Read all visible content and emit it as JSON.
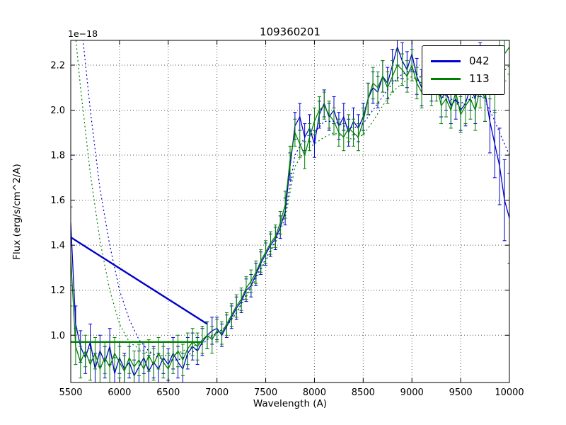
{
  "chart_data": {
    "type": "line",
    "title": "109360201",
    "xlabel": "Wavelength (A)",
    "ylabel": "Flux (erg/s/cm^2/A)",
    "y_offset_label": "1e−18",
    "xlim": [
      5500,
      10000
    ],
    "ylim": [
      0.79,
      2.31
    ],
    "x_ticks": [
      5500,
      6000,
      6500,
      7000,
      7500,
      8000,
      8500,
      9000,
      9500,
      10000
    ],
    "x_tick_labels": [
      "5500",
      "6000",
      "6500",
      "7000",
      "7500",
      "8000",
      "8500",
      "9000",
      "9500",
      "10000"
    ],
    "y_ticks": [
      1.0,
      1.2,
      1.4,
      1.6,
      1.8,
      2.0,
      2.2
    ],
    "y_tick_labels": [
      "1.0",
      "1.2",
      "1.4",
      "1.6",
      "1.8",
      "2.0",
      "2.2"
    ],
    "grid": true,
    "colors": {
      "blue": "#0000cc",
      "green": "#008000"
    },
    "legend": {
      "position": "upper right",
      "entries": [
        {
          "label": "042",
          "color": "#0000cc"
        },
        {
          "label": "113",
          "color": "#008000"
        }
      ]
    },
    "series": [
      {
        "name": "042",
        "type": "errorbar-line",
        "color": "#0000cc",
        "linewidth": 1.3,
        "x": [
          5500,
          5550,
          5600,
          5650,
          5700,
          5750,
          5800,
          5850,
          5900,
          5950,
          6000,
          6050,
          6100,
          6150,
          6200,
          6250,
          6300,
          6350,
          6400,
          6450,
          6500,
          6550,
          6600,
          6650,
          6700,
          6750,
          6800,
          6850,
          6900,
          6950,
          7000,
          7050,
          7100,
          7150,
          7200,
          7250,
          7300,
          7350,
          7400,
          7450,
          7500,
          7550,
          7600,
          7650,
          7700,
          7750,
          7800,
          7850,
          7900,
          7950,
          8000,
          8050,
          8100,
          8150,
          8200,
          8250,
          8300,
          8350,
          8400,
          8450,
          8500,
          8550,
          8600,
          8650,
          8700,
          8750,
          8800,
          8850,
          8900,
          8950,
          9000,
          9050,
          9100,
          9150,
          9200,
          9250,
          9300,
          9350,
          9400,
          9450,
          9500,
          9550,
          9600,
          9650,
          9700,
          9750,
          9800,
          9850,
          9900,
          9950,
          10000
        ],
        "y": [
          1.5,
          1.05,
          0.95,
          0.9,
          0.97,
          0.85,
          0.93,
          0.88,
          0.95,
          0.83,
          0.9,
          0.85,
          0.88,
          0.82,
          0.86,
          0.9,
          0.84,
          0.88,
          0.85,
          0.9,
          0.87,
          0.92,
          0.88,
          0.85,
          0.92,
          0.95,
          0.93,
          0.97,
          1.0,
          1.02,
          1.03,
          1.0,
          1.04,
          1.08,
          1.12,
          1.15,
          1.2,
          1.22,
          1.27,
          1.32,
          1.36,
          1.4,
          1.43,
          1.48,
          1.55,
          1.75,
          1.93,
          1.97,
          1.88,
          1.92,
          1.85,
          1.98,
          2.03,
          1.97,
          2.0,
          1.93,
          1.97,
          1.9,
          1.95,
          1.92,
          1.97,
          2.05,
          2.1,
          2.08,
          2.15,
          2.12,
          2.2,
          2.28,
          2.22,
          2.18,
          2.25,
          2.15,
          2.1,
          2.18,
          2.12,
          2.15,
          2.05,
          2.08,
          2.02,
          2.05,
          2.0,
          2.03,
          2.1,
          2.05,
          2.18,
          2.08,
          1.95,
          1.85,
          1.75,
          1.6,
          1.52
        ],
        "yerr": [
          0.28,
          0.08,
          0.07,
          0.07,
          0.08,
          0.07,
          0.07,
          0.07,
          0.08,
          0.07,
          0.07,
          0.07,
          0.07,
          0.07,
          0.07,
          0.07,
          0.07,
          0.07,
          0.07,
          0.07,
          0.07,
          0.07,
          0.07,
          0.07,
          0.07,
          0.06,
          0.06,
          0.06,
          0.06,
          0.06,
          0.05,
          0.05,
          0.05,
          0.05,
          0.05,
          0.05,
          0.05,
          0.05,
          0.05,
          0.05,
          0.05,
          0.05,
          0.05,
          0.05,
          0.06,
          0.06,
          0.06,
          0.06,
          0.06,
          0.06,
          0.06,
          0.06,
          0.06,
          0.06,
          0.06,
          0.06,
          0.06,
          0.06,
          0.06,
          0.06,
          0.06,
          0.07,
          0.07,
          0.07,
          0.07,
          0.07,
          0.07,
          0.08,
          0.08,
          0.08,
          0.08,
          0.08,
          0.08,
          0.08,
          0.08,
          0.08,
          0.08,
          0.08,
          0.08,
          0.09,
          0.09,
          0.1,
          0.1,
          0.11,
          0.12,
          0.13,
          0.14,
          0.15,
          0.17,
          0.18,
          0.2
        ]
      },
      {
        "name": "113",
        "type": "errorbar-line",
        "color": "#008000",
        "linewidth": 1.3,
        "x": [
          5500,
          5550,
          5600,
          5650,
          5700,
          5750,
          5800,
          5850,
          5900,
          5950,
          6000,
          6050,
          6100,
          6150,
          6200,
          6250,
          6300,
          6350,
          6400,
          6450,
          6500,
          6550,
          6600,
          6650,
          6700,
          6750,
          6800,
          6850,
          6900,
          6950,
          7000,
          7050,
          7100,
          7150,
          7200,
          7250,
          7300,
          7350,
          7400,
          7450,
          7500,
          7550,
          7600,
          7650,
          7700,
          7750,
          7800,
          7850,
          7900,
          7950,
          8000,
          8050,
          8100,
          8150,
          8200,
          8250,
          8300,
          8350,
          8400,
          8450,
          8500,
          8550,
          8600,
          8650,
          8700,
          8750,
          8800,
          8850,
          8900,
          8950,
          9000,
          9050,
          9100,
          9150,
          9200,
          9250,
          9300,
          9350,
          9400,
          9450,
          9500,
          9550,
          9600,
          9650,
          9700,
          9750,
          9800,
          9850,
          9900,
          9950,
          10000
        ],
        "y": [
          1.35,
          0.95,
          0.88,
          0.93,
          0.87,
          0.92,
          0.85,
          0.9,
          0.86,
          0.92,
          0.88,
          0.84,
          0.9,
          0.86,
          0.89,
          0.85,
          0.91,
          0.87,
          0.92,
          0.88,
          0.85,
          0.9,
          0.93,
          0.89,
          0.94,
          0.97,
          0.95,
          0.98,
          1.0,
          0.98,
          1.02,
          1.01,
          1.05,
          1.09,
          1.13,
          1.16,
          1.21,
          1.24,
          1.28,
          1.33,
          1.37,
          1.41,
          1.44,
          1.5,
          1.58,
          1.78,
          1.9,
          1.85,
          1.8,
          1.88,
          1.95,
          2.0,
          2.02,
          1.98,
          1.95,
          1.9,
          1.88,
          1.92,
          1.9,
          1.88,
          1.95,
          2.05,
          2.12,
          2.1,
          2.15,
          2.1,
          2.15,
          2.2,
          2.18,
          2.15,
          2.2,
          2.12,
          2.08,
          2.15,
          2.1,
          2.12,
          2.02,
          2.05,
          2.0,
          2.08,
          1.98,
          2.02,
          2.05,
          2.0,
          2.1,
          2.05,
          2.15,
          2.1,
          2.2,
          2.25,
          2.28
        ],
        "yerr": [
          0.22,
          0.08,
          0.07,
          0.07,
          0.07,
          0.07,
          0.07,
          0.07,
          0.07,
          0.07,
          0.07,
          0.07,
          0.07,
          0.07,
          0.07,
          0.07,
          0.07,
          0.07,
          0.07,
          0.07,
          0.07,
          0.07,
          0.07,
          0.07,
          0.07,
          0.06,
          0.06,
          0.06,
          0.06,
          0.06,
          0.05,
          0.05,
          0.05,
          0.05,
          0.05,
          0.05,
          0.05,
          0.05,
          0.05,
          0.05,
          0.05,
          0.05,
          0.05,
          0.05,
          0.06,
          0.06,
          0.06,
          0.06,
          0.06,
          0.06,
          0.06,
          0.06,
          0.06,
          0.06,
          0.06,
          0.06,
          0.06,
          0.06,
          0.06,
          0.06,
          0.06,
          0.07,
          0.07,
          0.07,
          0.07,
          0.07,
          0.07,
          0.07,
          0.07,
          0.07,
          0.07,
          0.07,
          0.07,
          0.08,
          0.08,
          0.08,
          0.08,
          0.08,
          0.08,
          0.08,
          0.08,
          0.08,
          0.09,
          0.09,
          0.09,
          0.1,
          0.1,
          0.11,
          0.11,
          0.12,
          0.12
        ]
      },
      {
        "name": "042-model",
        "type": "dotted-line",
        "color": "#0000cc",
        "linewidth": 1.2,
        "x": [
          5500,
          5600,
          5700,
          5800,
          5900,
          6000,
          6100,
          6200,
          6300,
          6400,
          6500,
          6600,
          6700,
          6800,
          6900,
          7000,
          7100,
          7200,
          7300,
          7400,
          7500,
          7600,
          7700,
          7800,
          7900,
          8000,
          8100,
          8200,
          8300,
          8400,
          8500,
          8600,
          8700,
          8800,
          8900,
          9000,
          9100,
          9200,
          9300,
          9400,
          9500,
          9600,
          9700,
          9800,
          9900,
          10000
        ],
        "y": [
          2.9,
          2.42,
          2.0,
          1.65,
          1.4,
          1.2,
          1.07,
          0.98,
          0.93,
          0.9,
          0.89,
          0.89,
          0.91,
          0.94,
          0.98,
          1.01,
          1.04,
          1.1,
          1.18,
          1.26,
          1.34,
          1.42,
          1.54,
          1.8,
          1.88,
          1.9,
          1.95,
          1.95,
          1.93,
          1.92,
          1.94,
          2.0,
          2.06,
          2.12,
          2.16,
          2.18,
          2.14,
          2.12,
          2.08,
          2.05,
          2.03,
          2.05,
          2.08,
          2.0,
          1.9,
          1.8
        ]
      },
      {
        "name": "113-model",
        "type": "dotted-line",
        "color": "#008000",
        "linewidth": 1.2,
        "x": [
          5500,
          5600,
          5700,
          5800,
          5900,
          6000,
          6100,
          6200,
          6300,
          6400,
          6500,
          6600,
          6700,
          6800,
          6900,
          7000,
          7100,
          7200,
          7300,
          7400,
          7500,
          7600,
          7700,
          7800,
          7900,
          8000,
          8100,
          8200,
          8300,
          8400,
          8500,
          8600,
          8700,
          8800,
          8900,
          9000,
          9100,
          9200,
          9300,
          9400,
          9500,
          9600,
          9700,
          9800,
          9900,
          10000
        ],
        "y": [
          2.55,
          2.1,
          1.72,
          1.42,
          1.2,
          1.05,
          0.97,
          0.94,
          0.92,
          0.91,
          0.91,
          0.92,
          0.94,
          0.96,
          0.99,
          1.01,
          1.04,
          1.1,
          1.17,
          1.25,
          1.33,
          1.41,
          1.52,
          1.75,
          1.82,
          1.85,
          1.88,
          1.9,
          1.88,
          1.87,
          1.89,
          1.95,
          2.02,
          2.08,
          2.12,
          2.15,
          2.12,
          2.1,
          2.06,
          2.04,
          2.02,
          2.04,
          2.07,
          2.1,
          2.15,
          2.2
        ]
      },
      {
        "name": "042-fit",
        "type": "line",
        "color": "#0000cc",
        "linewidth": 2.4,
        "x": [
          5500,
          6900
        ],
        "y": [
          1.435,
          1.05
        ]
      },
      {
        "name": "113-fit",
        "type": "line",
        "color": "#008000",
        "linewidth": 2.4,
        "x": [
          5500,
          6860
        ],
        "y": [
          0.97,
          0.97
        ]
      }
    ]
  }
}
